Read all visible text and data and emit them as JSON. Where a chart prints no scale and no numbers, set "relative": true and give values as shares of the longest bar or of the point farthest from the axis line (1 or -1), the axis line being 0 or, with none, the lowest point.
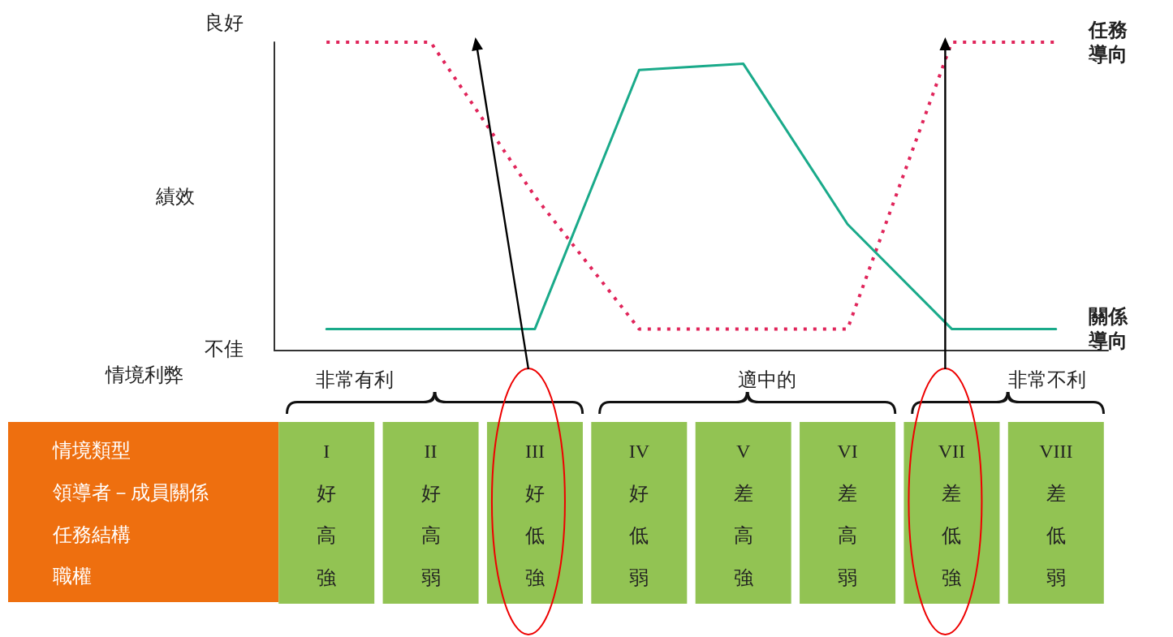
{
  "chart_data": {
    "type": "line",
    "ylabel": "績效",
    "relative": true,
    "legend": false,
    "grid": false,
    "marker": "none",
    "categories": [
      "I好高強",
      "II好高弱",
      "III好低強",
      "IV好低弱",
      "V差高強",
      "VI差高弱",
      "VII差低強",
      "VIII差低弱"
    ],
    "series": [
      {
        "name": "任務導向",
        "color": "#e0245a",
        "line_style": "dotted",
        "values": [
          1,
          1,
          0.5,
          0.07,
          0.07,
          0.07,
          1,
          1
        ]
      },
      {
        "name": "關係導向",
        "color": "#1aaa8a",
        "line_style": "solid",
        "values": [
          0.07,
          0.07,
          0.07,
          0.91,
          0.93,
          0.41,
          0.07,
          0.07
        ]
      }
    ],
    "annotations": [
      "良好",
      "不佳",
      "情境利弊",
      "非常有利",
      "適中的",
      "非常不利",
      "情境類型",
      "領導者－成員關係",
      "任務結構",
      "職權"
    ]
  }
}
